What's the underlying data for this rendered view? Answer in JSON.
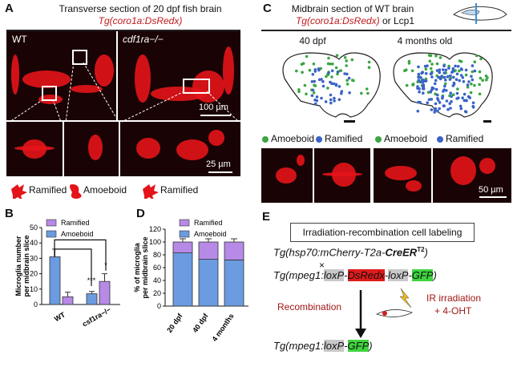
{
  "panelA": {
    "letter": "A",
    "title": "Transverse section of 20 dpf fish brain",
    "subtitle": "Tg(coro1a:DsRedx)",
    "wt_label": "WT",
    "mut_label": "cdf1ra−/−",
    "scale1": "100 µm",
    "scale2": "25 µm",
    "legend": [
      "Ramified",
      "Amoeboid",
      "Ramified"
    ]
  },
  "panelC": {
    "letter": "C",
    "title": "Midbrain section of WT brain",
    "subtitle_red": "Tg(coro1a:DsRedx)",
    "subtitle_or": " or Lcp1",
    "age1": "40 dpf",
    "age2": "4 months old",
    "legend": [
      "Amoeboid",
      "Ramified",
      "Amoeboid",
      "Ramified"
    ],
    "scale": "50 µm",
    "colors": {
      "amoeboid": "#3aa640",
      "ramified": "#3a62c8"
    }
  },
  "panelB": {
    "letter": "B",
    "ylabel": "Microglia number per midbrain slice",
    "legend": [
      "Ramified",
      "Amoeboid"
    ],
    "groups": [
      "WT",
      "csf1ra−/−"
    ],
    "sig": [
      "***",
      "*"
    ]
  },
  "panelD": {
    "letter": "D",
    "ylabel": "% of microglia per midbrain slice",
    "legend": [
      "Ramified",
      "Amoeboid"
    ]
  },
  "panelE": {
    "letter": "E",
    "box_title": "Irradiation-recombination cell labeling",
    "line1_pre": "Tg(hsp70:mCherry-T2a-",
    "line1_bold": "CreER",
    "line1_sup": "T2",
    "line1_post": ")",
    "times": "×",
    "line2_pre": "Tg(mpeg1:",
    "line2_lox1": "loxP",
    "line2_dash1": "-",
    "line2_ds": "DsRedx",
    "line2_dash2": "-",
    "line2_lox2": "loxP",
    "line2_dash3": "-",
    "line2_gfp": "GFP",
    "line2_post": ")",
    "recomb": "Recombination",
    "ir": "IR irradiation",
    "ohtt": "+ 4-OHT",
    "line3_pre": "Tg(mpeg1:",
    "line3_lox": "loxP",
    "line3_dash": "-",
    "line3_gfp": "GFP",
    "line3_post": ")"
  },
  "chart_data": [
    {
      "type": "bar",
      "panel": "B",
      "categories": [
        "WT",
        "csf1ra−/−"
      ],
      "series": [
        {
          "name": "Amoeboid",
          "values": [
            31,
            7
          ]
        },
        {
          "name": "Ramified",
          "values": [
            5,
            15
          ]
        }
      ],
      "errors": {
        "Amoeboid": [
          5,
          1.5
        ],
        "Ramified": [
          3,
          5
        ]
      },
      "ylabel": "Microglia number per midbrain slice",
      "ylim": [
        0,
        50
      ],
      "yticks": [
        0,
        10,
        20,
        30,
        40,
        50
      ],
      "annotations": [
        "***",
        "*"
      ]
    },
    {
      "type": "bar",
      "panel": "D",
      "stacked": true,
      "categories": [
        "20 dpf",
        "40 dpf",
        "4 months"
      ],
      "series": [
        {
          "name": "Amoeboid",
          "values": [
            83,
            73,
            72
          ]
        },
        {
          "name": "Ramified",
          "values": [
            17,
            27,
            28
          ]
        }
      ],
      "ylabel": "% of microglia per midbrain slice",
      "ylim": [
        0,
        120
      ],
      "yticks": [
        0,
        20,
        40,
        60,
        80,
        100,
        120
      ]
    }
  ]
}
